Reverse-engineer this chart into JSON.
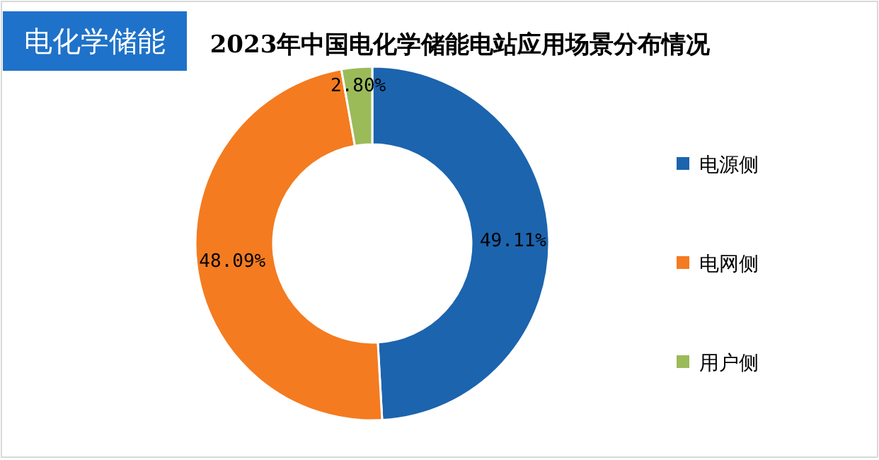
{
  "chart_data": {
    "type": "donut",
    "title": "2023年中国电化学储能电站应用场景分布情况",
    "annotations": [
      "电化学储能"
    ],
    "categories": [
      "电源侧",
      "电网侧",
      "用户侧"
    ],
    "values": [
      49.11,
      48.09,
      2.8
    ],
    "value_labels": [
      "49.11%",
      "48.09%",
      "2.80%"
    ],
    "colors": [
      "#1c64ae",
      "#f47b20",
      "#9bbb59"
    ],
    "legend": "right"
  }
}
